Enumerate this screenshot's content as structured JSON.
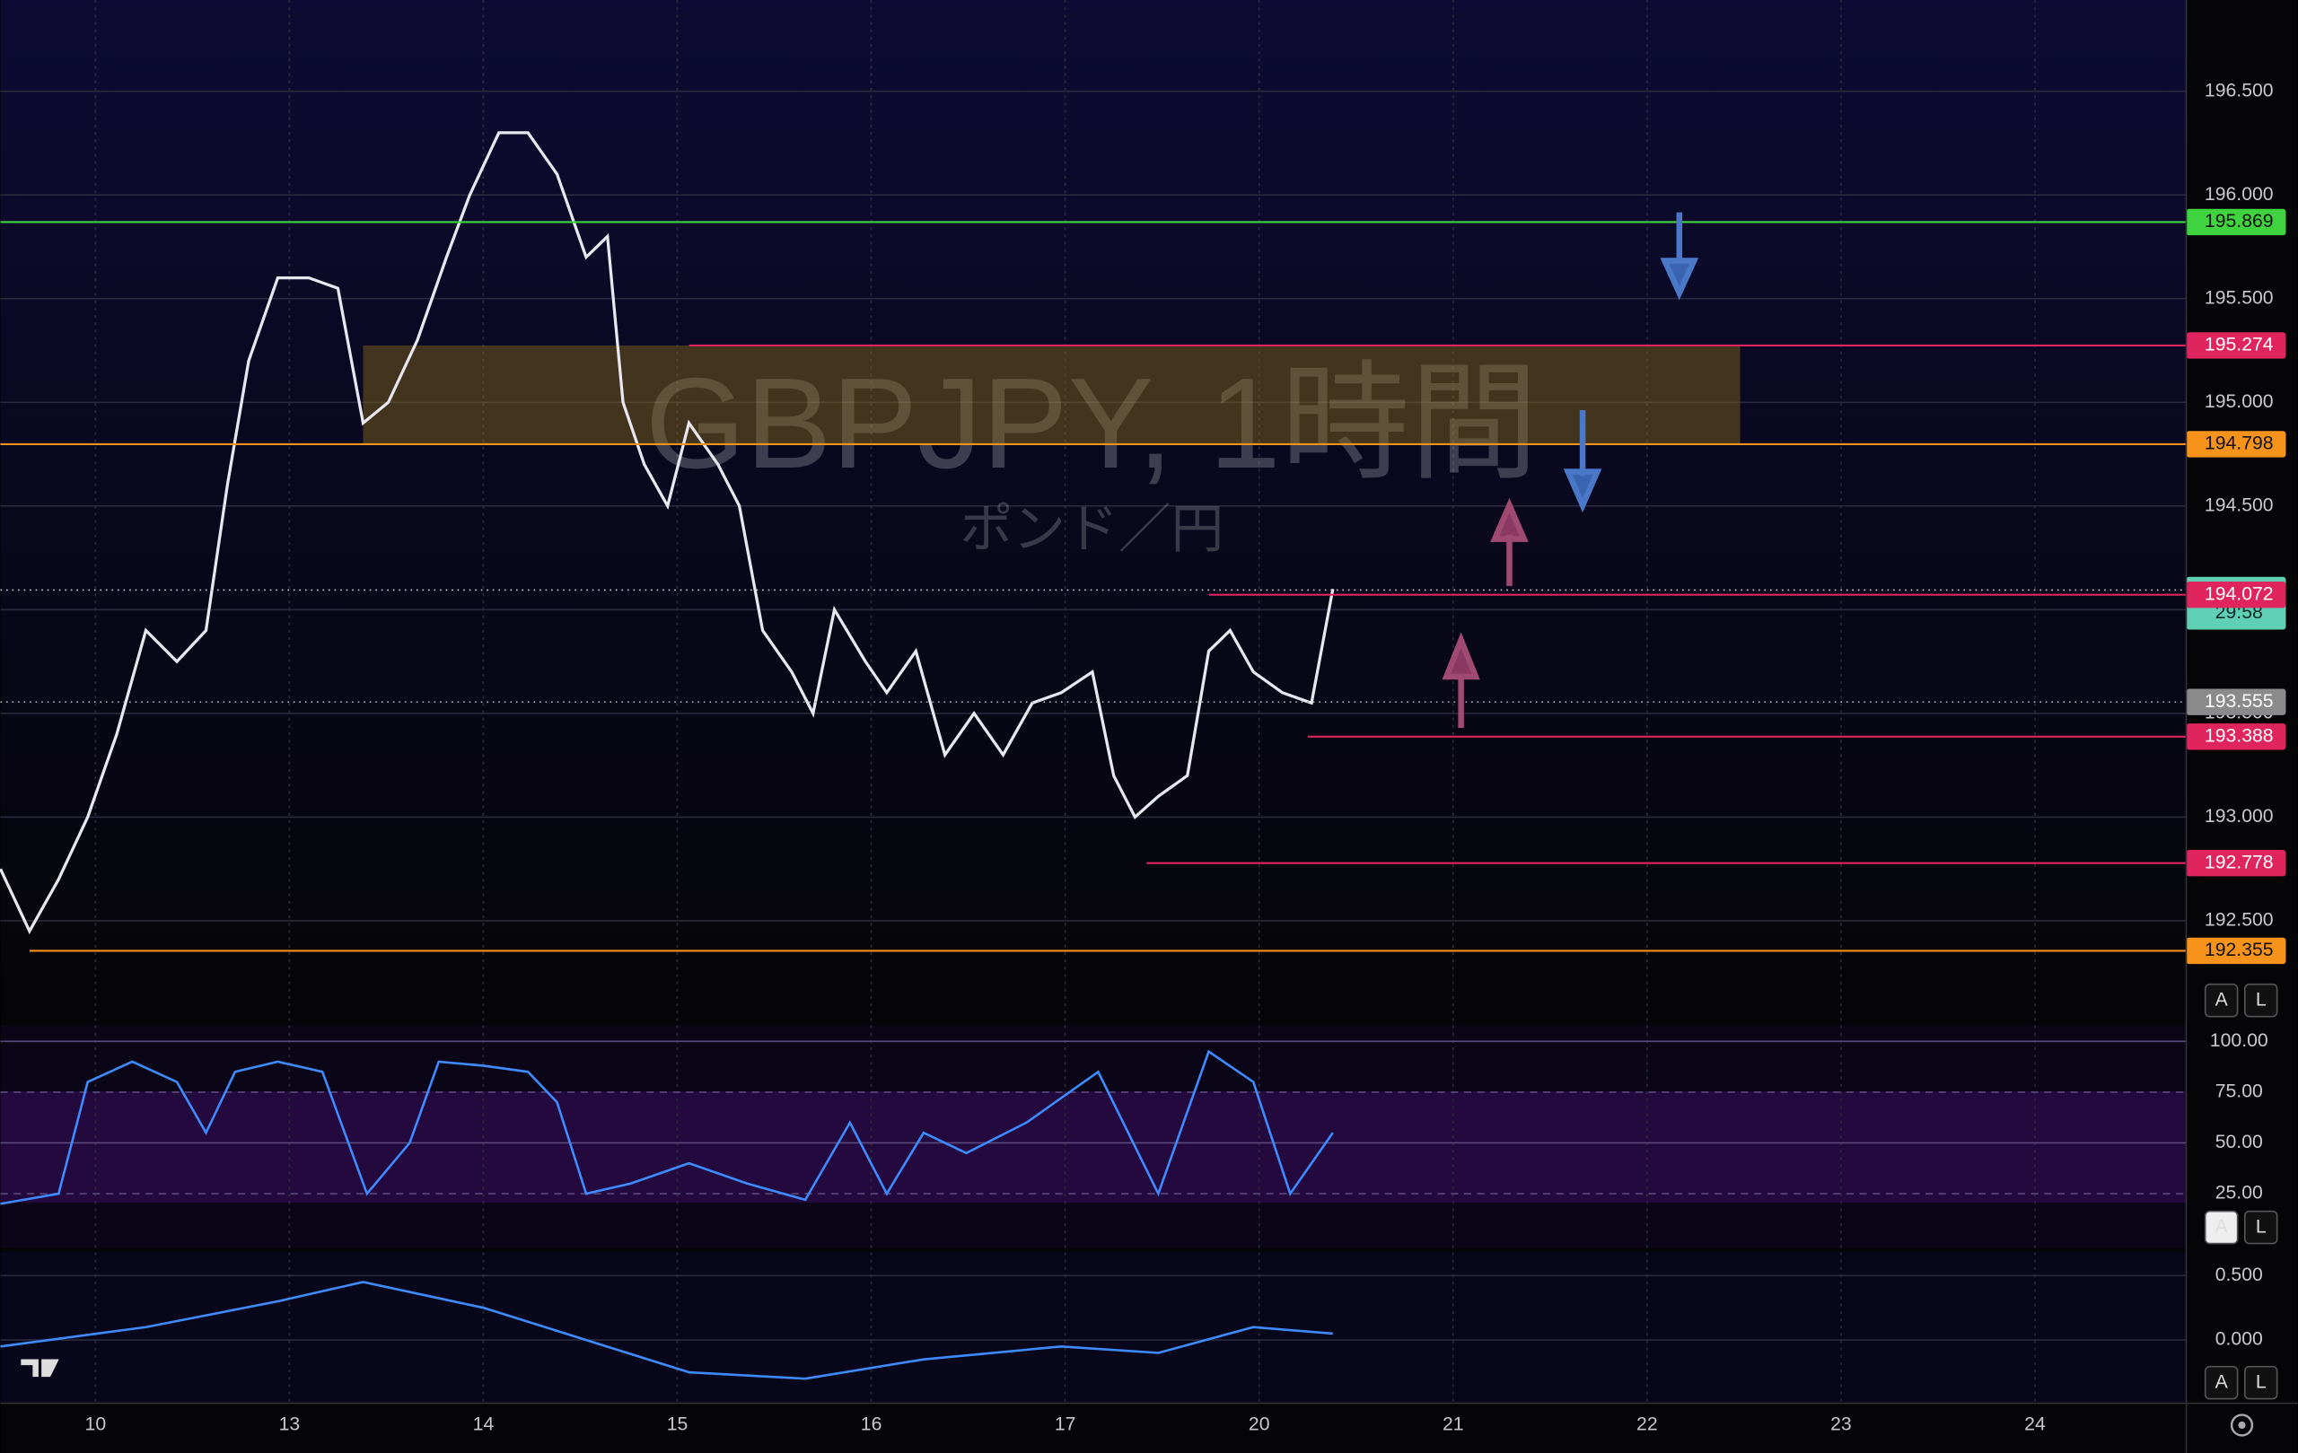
{
  "chart_data": [
    {
      "type": "line",
      "watermark": {
        "symbol": "GBPJPY, 1時間",
        "name": "ポンド／円"
      },
      "xlim": [
        -0.49,
        10.78
      ],
      "xticks": [
        {
          "value": 0,
          "label": "10"
        },
        {
          "value": 1,
          "label": "13"
        },
        {
          "value": 2,
          "label": "14"
        },
        {
          "value": 3,
          "label": "15"
        },
        {
          "value": 4,
          "label": "16"
        },
        {
          "value": 5,
          "label": "17"
        },
        {
          "value": 6,
          "label": "20"
        },
        {
          "value": 7,
          "label": "21"
        },
        {
          "value": 8,
          "label": "22"
        },
        {
          "value": 9,
          "label": "23"
        },
        {
          "value": 10,
          "label": "24"
        }
      ],
      "ylim": [
        192.01,
        196.94
      ],
      "yticks": [
        {
          "value": 192.5,
          "label": "192.500"
        },
        {
          "value": 193,
          "label": "193.000"
        },
        {
          "value": 193.5,
          "label": "193.500"
        },
        {
          "value": 194,
          "label": "194.000"
        },
        {
          "value": 194.5,
          "label": "194.500"
        },
        {
          "value": 195,
          "label": "195.000"
        },
        {
          "value": 195.5,
          "label": "195.500"
        },
        {
          "value": 196,
          "label": "196.000"
        },
        {
          "value": 196.5,
          "label": "196.500"
        }
      ],
      "grid": true,
      "x": [
        -0.49,
        -0.34,
        -0.19,
        -0.04,
        0.11,
        0.26,
        0.42,
        0.57,
        0.68,
        0.79,
        0.94,
        1.1,
        1.25,
        1.38,
        1.51,
        1.66,
        1.81,
        1.93,
        2.08,
        2.23,
        2.38,
        2.53,
        2.64,
        2.72,
        2.83,
        2.95,
        3.06,
        3.21,
        3.32,
        3.44,
        3.59,
        3.7,
        3.81,
        3.97,
        4.08,
        4.23,
        4.38,
        4.53,
        4.68,
        4.83,
        4.98,
        5.14,
        5.25,
        5.36,
        5.48,
        5.63,
        5.74,
        5.85,
        5.97,
        6.12,
        6.27,
        6.38
      ],
      "series": [
        {
          "color": "#e8e8f0",
          "values": [
            192.75,
            192.45,
            192.7,
            193.0,
            193.4,
            193.9,
            193.75,
            193.9,
            194.6,
            195.2,
            195.6,
            195.6,
            195.55,
            194.9,
            195.0,
            195.3,
            195.7,
            196.0,
            196.3,
            196.3,
            196.1,
            195.7,
            195.8,
            195.0,
            194.7,
            194.5,
            194.9,
            194.7,
            194.5,
            193.9,
            193.7,
            193.5,
            194.0,
            193.75,
            193.6,
            193.8,
            193.3,
            193.5,
            193.3,
            193.55,
            193.6,
            193.7,
            193.2,
            193.0,
            193.1,
            193.2,
            193.8,
            193.9,
            193.7,
            193.6,
            193.55,
            194.1
          ]
        }
      ],
      "levels": [
        {
          "value": 195.869,
          "color": "#3fd43f",
          "from": -0.49
        },
        {
          "value": 195.274,
          "color": "#e0245e",
          "from": 3.06
        },
        {
          "value": 194.798,
          "color": "#f7931a",
          "from": -0.49
        },
        {
          "value": 194.072,
          "color": "#e0245e",
          "from": 5.74
        },
        {
          "value": 193.388,
          "color": "#e0245e",
          "from": 6.25
        },
        {
          "value": 192.778,
          "color": "#e0245e",
          "from": 5.42
        },
        {
          "value": 192.355,
          "color": "#f7931a",
          "from": -0.34
        }
      ],
      "zone": {
        "from": 1.38,
        "to": 8.48,
        "color": "#8a6a1a"
      },
      "current": {
        "value": 194.095,
        "countdown": "29:58",
        "color": "#5fd0b5"
      },
      "marker": {
        "value": 193.555,
        "color": "#8a8a8a"
      },
      "buttons": [
        "A",
        "L"
      ]
    },
    {
      "type": "line",
      "xlim": [
        -0.49,
        10.78
      ],
      "ylim": [
        -1.7,
        107.9
      ],
      "yticks": [
        {
          "value": 25,
          "label": "25.00"
        },
        {
          "value": 50,
          "label": "50.00"
        },
        {
          "value": 75,
          "label": "75.00"
        },
        {
          "value": 100,
          "label": "100.00"
        }
      ],
      "x": [
        -0.49,
        -0.19,
        -0.04,
        0.19,
        0.42,
        0.57,
        0.72,
        0.94,
        1.17,
        1.4,
        1.62,
        1.77,
        2.0,
        2.23,
        2.38,
        2.53,
        2.76,
        3.06,
        3.36,
        3.66,
        3.89,
        4.08,
        4.27,
        4.49,
        4.8,
        5.17,
        5.48,
        5.74,
        5.97,
        6.16,
        6.38
      ],
      "series": [
        {
          "color": "#3d8bff",
          "values": [
            20,
            25,
            80,
            90,
            80,
            55,
            85,
            90,
            85,
            25,
            50,
            90,
            88,
            85,
            70,
            25,
            30,
            40,
            30,
            22,
            60,
            25,
            55,
            45,
            60,
            85,
            25,
            95,
            80,
            25,
            55
          ]
        }
      ],
      "buttons": [
        "A",
        "L"
      ]
    },
    {
      "type": "line",
      "xlim": [
        -0.49,
        10.78
      ],
      "ylim": [
        -0.49,
        0.68
      ],
      "yticks": [
        {
          "value": 0,
          "label": "0.000"
        },
        {
          "value": 0.5,
          "label": "0.500"
        }
      ],
      "x": [
        -0.49,
        0.26,
        0.94,
        1.38,
        2.0,
        2.53,
        3.06,
        3.66,
        4.27,
        4.98,
        5.48,
        5.97,
        6.38
      ],
      "series": [
        {
          "color": "#3d8bff",
          "values": [
            -0.05,
            0.1,
            0.3,
            0.45,
            0.25,
            0.0,
            -0.25,
            -0.3,
            -0.15,
            -0.05,
            -0.1,
            0.1,
            0.05
          ]
        }
      ],
      "buttons": [
        "A",
        "L"
      ]
    }
  ]
}
